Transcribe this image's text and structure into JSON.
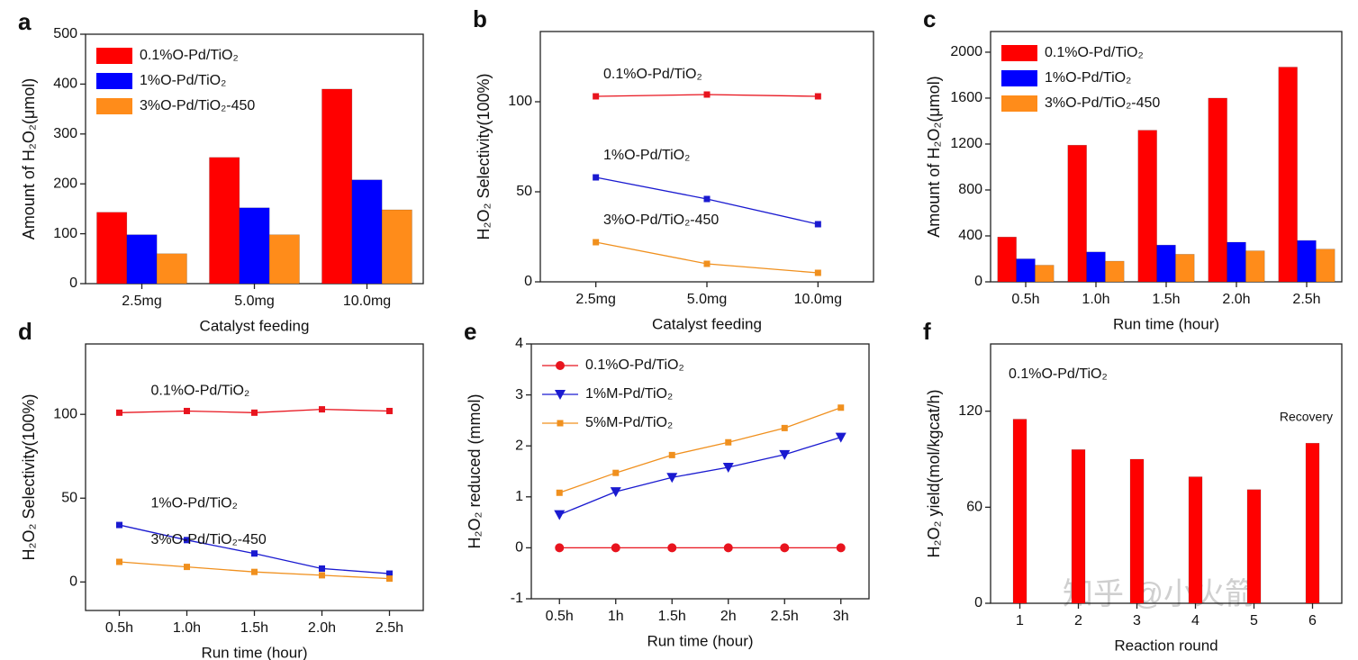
{
  "chart_data": [
    {
      "type": "bar",
      "panel_label": "a",
      "x_label": "Catalyst feeding",
      "y_label": "Amount of H₂O₂(μmol)",
      "categories": [
        "2.5mg",
        "5.0mg",
        "10.0mg"
      ],
      "series": [
        {
          "name": "0.1%O-Pd/TiO₂",
          "color": "#ff0000",
          "values": [
            143,
            253,
            390
          ]
        },
        {
          "name": "1%O-Pd/TiO₂",
          "color": "#0000ff",
          "values": [
            98,
            152,
            208
          ]
        },
        {
          "name": "3%O-Pd/TiO₂-450",
          "color": "#ff8c1a",
          "values": [
            60,
            98,
            148
          ]
        }
      ],
      "ylim": [
        0,
        500
      ],
      "yticks": [
        0,
        100,
        200,
        300,
        400,
        500
      ],
      "legend": "upper left"
    },
    {
      "type": "line",
      "panel_label": "b",
      "x_label": "Catalyst feeding",
      "y_label": "H₂O₂ Selectivity(100%)",
      "categories": [
        "2.5mg",
        "5.0mg",
        "10.0mg"
      ],
      "series": [
        {
          "name": "0.1%O-Pd/TiO₂",
          "color": "#e8141e",
          "marker": "square",
          "values": [
            103,
            104,
            103
          ]
        },
        {
          "name": "1%O-Pd/TiO₂",
          "color": "#1a1ad0",
          "marker": "square",
          "values": [
            58,
            46,
            32
          ]
        },
        {
          "name": "3%O-Pd/TiO₂-450",
          "color": "#f0901e",
          "marker": "square",
          "values": [
            22,
            10,
            5
          ]
        }
      ],
      "ylim": [
        0,
        139
      ],
      "yticks": [
        0,
        50,
        100
      ],
      "legend": "inline"
    },
    {
      "type": "bar",
      "panel_label": "c",
      "x_label": "Run time (hour)",
      "y_label": "Amount of H₂O₂(μmol)",
      "categories": [
        "0.5h",
        "1.0h",
        "1.5h",
        "2.0h",
        "2.5h"
      ],
      "series": [
        {
          "name": "0.1%O-Pd/TiO₂",
          "color": "#ff0000",
          "values": [
            390,
            1190,
            1320,
            1600,
            1870
          ]
        },
        {
          "name": "1%O-Pd/TiO₂",
          "color": "#0000ff",
          "values": [
            200,
            260,
            320,
            345,
            360
          ]
        },
        {
          "name": "3%O-Pd/TiO₂-450",
          "color": "#ff8c1a",
          "values": [
            145,
            180,
            240,
            270,
            285
          ]
        }
      ],
      "ylim": [
        0,
        2180
      ],
      "yticks": [
        0,
        400,
        800,
        1200,
        1600,
        2000
      ],
      "legend": "upper left"
    },
    {
      "type": "line",
      "panel_label": "d",
      "x_label": "Run time (hour)",
      "y_label": "H₂O₂ Selectivity(100%)",
      "categories": [
        "0.5h",
        "1.0h",
        "1.5h",
        "2.0h",
        "2.5h"
      ],
      "series": [
        {
          "name": "0.1%O-Pd/TiO₂",
          "color": "#e8141e",
          "marker": "square",
          "values": [
            101,
            102,
            101,
            103,
            102
          ]
        },
        {
          "name": "1%O-Pd/TiO₂",
          "color": "#1a1ad0",
          "marker": "square",
          "values": [
            34,
            25,
            17,
            8,
            5
          ]
        },
        {
          "name": "3%O-Pd/TiO₂-450",
          "color": "#f0901e",
          "marker": "square",
          "values": [
            12,
            9,
            6,
            4,
            2
          ]
        }
      ],
      "ylim": [
        -17,
        142
      ],
      "yticks": [
        0,
        50,
        100
      ],
      "legend": "inline"
    },
    {
      "type": "line",
      "panel_label": "e",
      "x_label": "Run time (hour)",
      "y_label": "H₂O₂  reduced (mmol)",
      "categories": [
        "0.5h",
        "1h",
        "1.5h",
        "2h",
        "2.5h",
        "3h"
      ],
      "series": [
        {
          "name": "0.1%O-Pd/TiO₂",
          "color": "#e8141e",
          "marker": "circle",
          "values": [
            0,
            0,
            0,
            0,
            0,
            0
          ]
        },
        {
          "name": "1%M-Pd/TiO₂",
          "color": "#1a1ad0",
          "marker": "triangle",
          "values": [
            0.65,
            1.1,
            1.38,
            1.58,
            1.83,
            2.17
          ]
        },
        {
          "name": "5%M-Pd/TiO₂",
          "color": "#f0901e",
          "marker": "square",
          "values": [
            1.08,
            1.47,
            1.82,
            2.07,
            2.35,
            2.75
          ]
        }
      ],
      "ylim": [
        -1,
        4
      ],
      "yticks": [
        -1,
        0,
        1,
        2,
        3,
        4
      ],
      "legend": "upper left"
    },
    {
      "type": "bar",
      "panel_label": "f",
      "x_label": "Reaction round",
      "y_label": "H₂O₂ yield(mol/kgcat/h)",
      "categories": [
        "1",
        "2",
        "3",
        "4",
        "5",
        "6"
      ],
      "series": [
        {
          "name": "0.1%O-Pd/TiO₂",
          "color": "#ff0000",
          "values": [
            115,
            96,
            90,
            79,
            71,
            100
          ]
        }
      ],
      "annotation": "Recovery",
      "ylim": [
        0,
        162
      ],
      "yticks": [
        0,
        60,
        120
      ],
      "legend": "upper left"
    }
  ],
  "watermark": "知乎 @小火箭"
}
